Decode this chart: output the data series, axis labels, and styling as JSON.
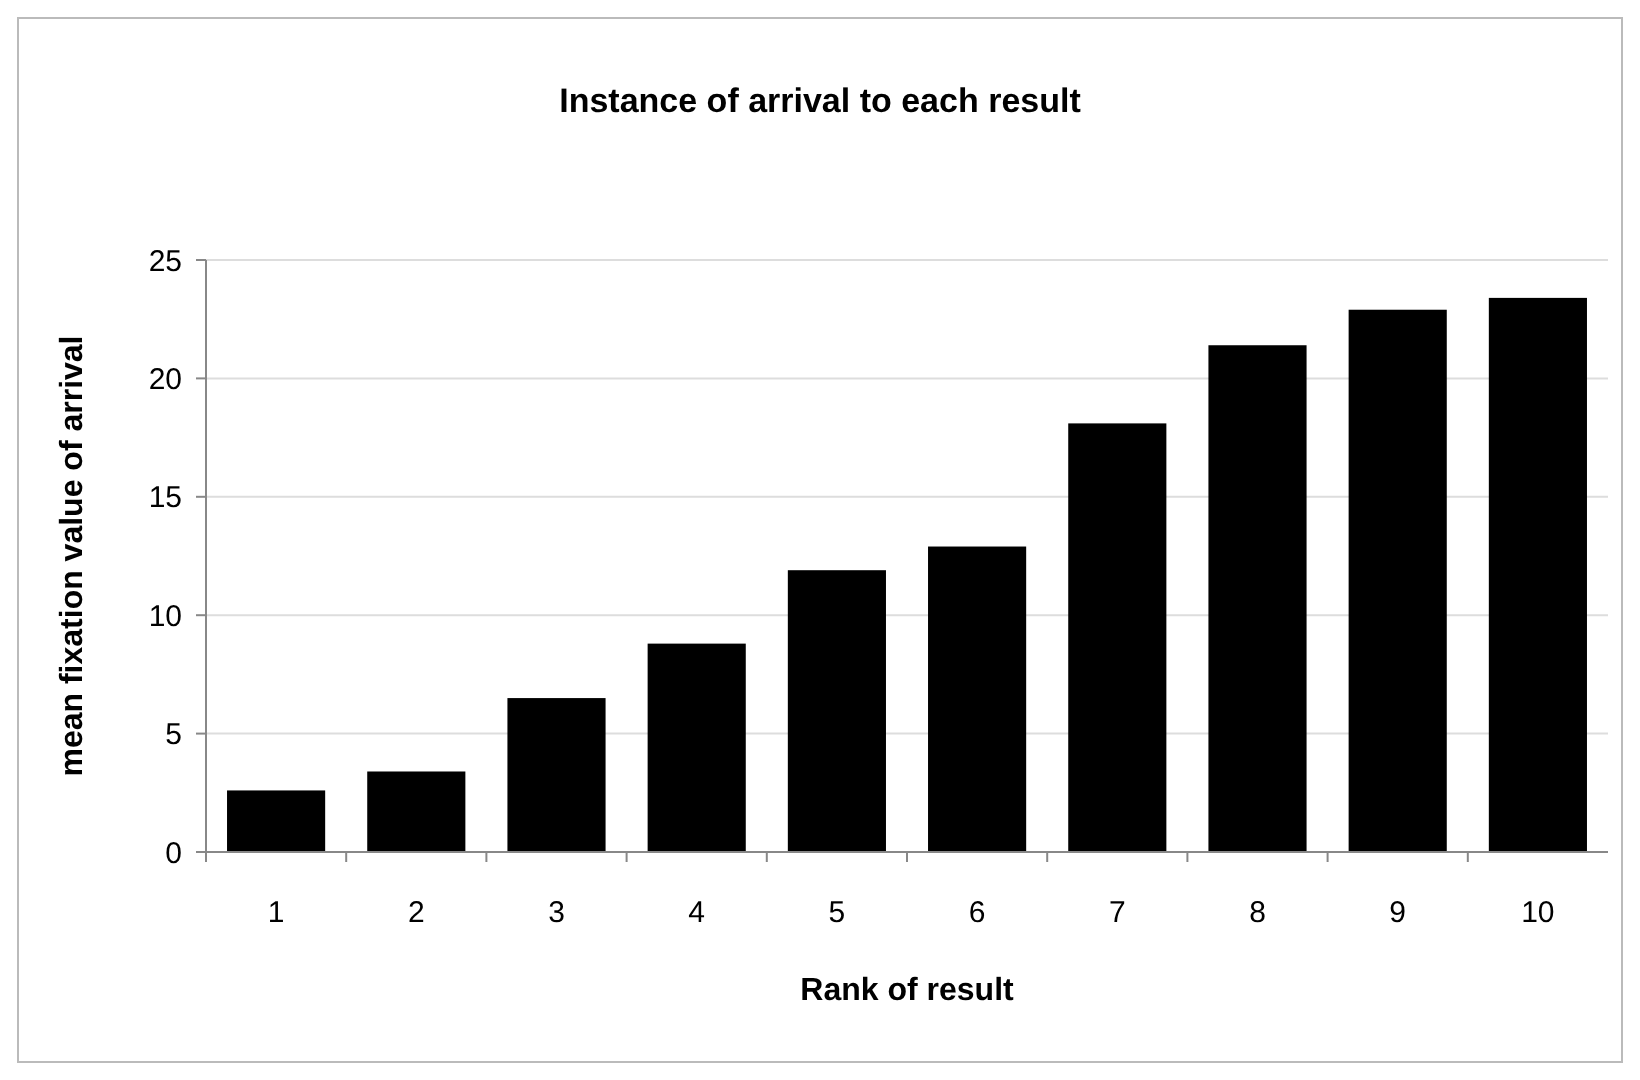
{
  "chart_data": {
    "type": "bar",
    "title": "Instance of arrival to each result",
    "xlabel": "Rank of result",
    "ylabel": "mean fixation value of arrival",
    "categories": [
      "1",
      "2",
      "3",
      "4",
      "5",
      "6",
      "7",
      "8",
      "9",
      "10"
    ],
    "values": [
      2.6,
      3.4,
      6.5,
      8.8,
      11.9,
      12.9,
      18.1,
      21.4,
      22.9,
      23.4
    ],
    "color": "#000000",
    "ylim": [
      0,
      25
    ],
    "yticks": [
      0,
      5,
      10,
      15,
      20,
      25
    ],
    "grid": "y"
  }
}
